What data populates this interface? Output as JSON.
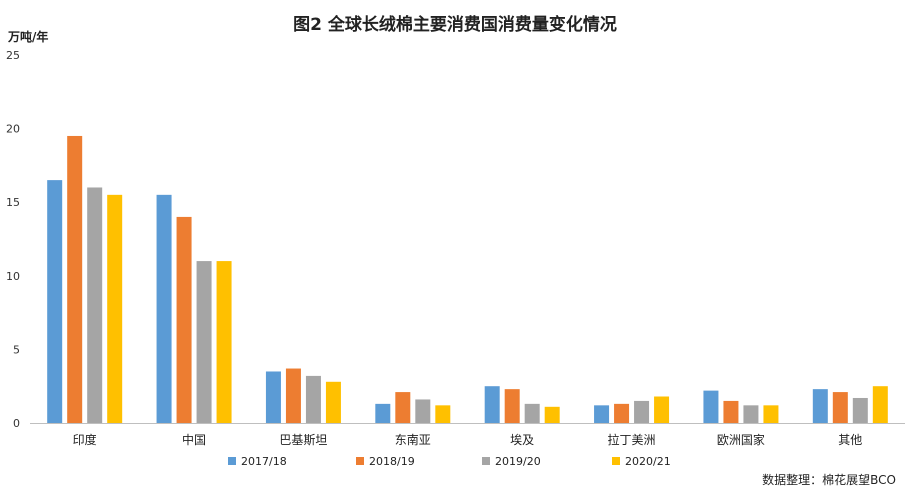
{
  "chart_data": {
    "type": "bar",
    "title": "图2 全球长绒棉主要消费国消费量变化情况",
    "ylabel": "万吨/年",
    "ylim": [
      0,
      25
    ],
    "yticks": [
      0,
      5,
      10,
      15,
      20,
      25
    ],
    "categories": [
      "印度",
      "中国",
      "巴基斯坦",
      "东南亚",
      "埃及",
      "拉丁美洲",
      "欧洲国家",
      "其他"
    ],
    "series": [
      {
        "name": "2017/18",
        "color": "#5B9BD5",
        "values": [
          16.5,
          15.5,
          3.5,
          1.3,
          2.5,
          1.2,
          2.2,
          2.3
        ]
      },
      {
        "name": "2018/19",
        "color": "#ED7D31",
        "values": [
          19.5,
          14.0,
          3.7,
          2.1,
          2.3,
          1.3,
          1.5,
          2.1
        ]
      },
      {
        "name": "2019/20",
        "color": "#A5A5A5",
        "values": [
          16.0,
          11.0,
          3.2,
          1.6,
          1.3,
          1.5,
          1.2,
          1.7
        ]
      },
      {
        "name": "2020/21",
        "color": "#FFC000",
        "values": [
          15.5,
          11.0,
          2.8,
          1.2,
          1.1,
          1.8,
          1.2,
          2.5
        ]
      }
    ],
    "grid": false,
    "legend_position": "bottom",
    "source": "数据整理：棉花展望BCO"
  }
}
